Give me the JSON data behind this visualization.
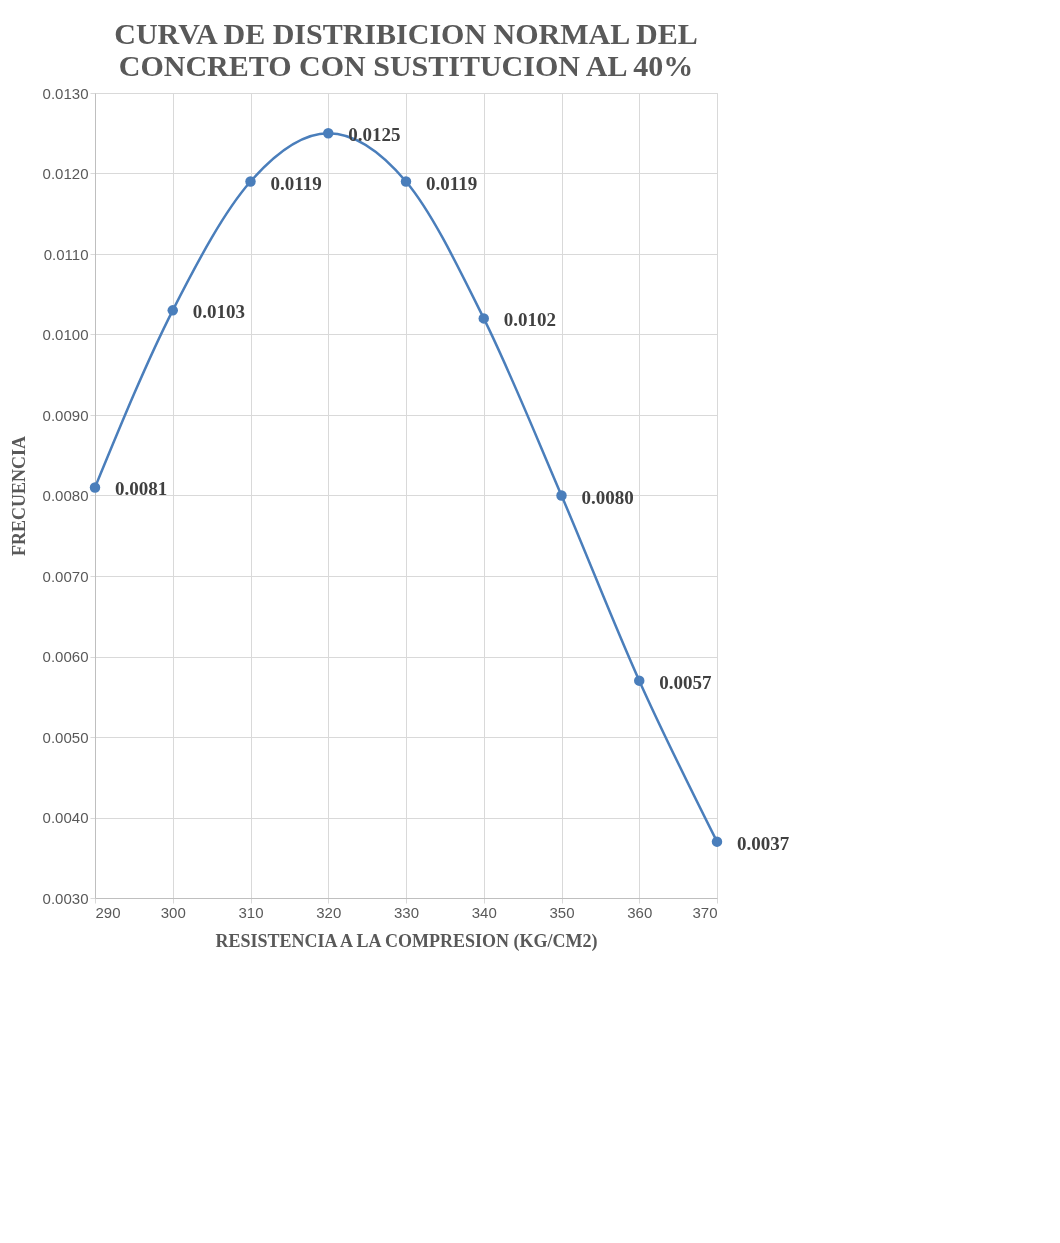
{
  "chart_data": {
    "type": "line",
    "title": [
      "CURVA DE DISTRIBICION NORMAL DEL",
      "CONCRETO CON SUSTITUCION AL 40%"
    ],
    "xlabel": "RESISTENCIA A LA COMPRESION (KG/CM2)",
    "ylabel": "FRECUENCIA",
    "x": [
      290,
      300,
      310,
      320,
      330,
      340,
      350,
      360,
      370
    ],
    "series": [
      {
        "color": "#4a7ebb",
        "values": [
          0.0081,
          0.0103,
          0.0119,
          0.0125,
          0.0119,
          0.0102,
          0.008,
          0.0057,
          0.0037
        ],
        "value_labels": [
          "0.0081",
          "0.0103",
          "0.0119",
          "0.0125",
          "0.0119",
          "0.0102",
          "0.0080",
          "0.0057",
          "0.0037"
        ]
      }
    ],
    "xlim": [
      290,
      370
    ],
    "xticks": [
      290,
      300,
      310,
      320,
      330,
      340,
      350,
      360,
      370
    ],
    "ylim": [
      0.003,
      0.013
    ],
    "yticks": [
      {
        "value": 0.003,
        "label": "0.0030"
      },
      {
        "value": 0.004,
        "label": "0.0040"
      },
      {
        "value": 0.005,
        "label": "0.0050"
      },
      {
        "value": 0.006,
        "label": "0.0060"
      },
      {
        "value": 0.007,
        "label": "0.0070"
      },
      {
        "value": 0.008,
        "label": "0.0080"
      },
      {
        "value": 0.009,
        "label": "0.0090"
      },
      {
        "value": 0.01,
        "label": "0.0100"
      },
      {
        "value": 0.011,
        "label": "0.0110"
      },
      {
        "value": 0.012,
        "label": "0.0120"
      },
      {
        "value": 0.013,
        "label": "0.0130"
      }
    ],
    "grid": true,
    "marker": "circle",
    "line_style": "solid"
  }
}
